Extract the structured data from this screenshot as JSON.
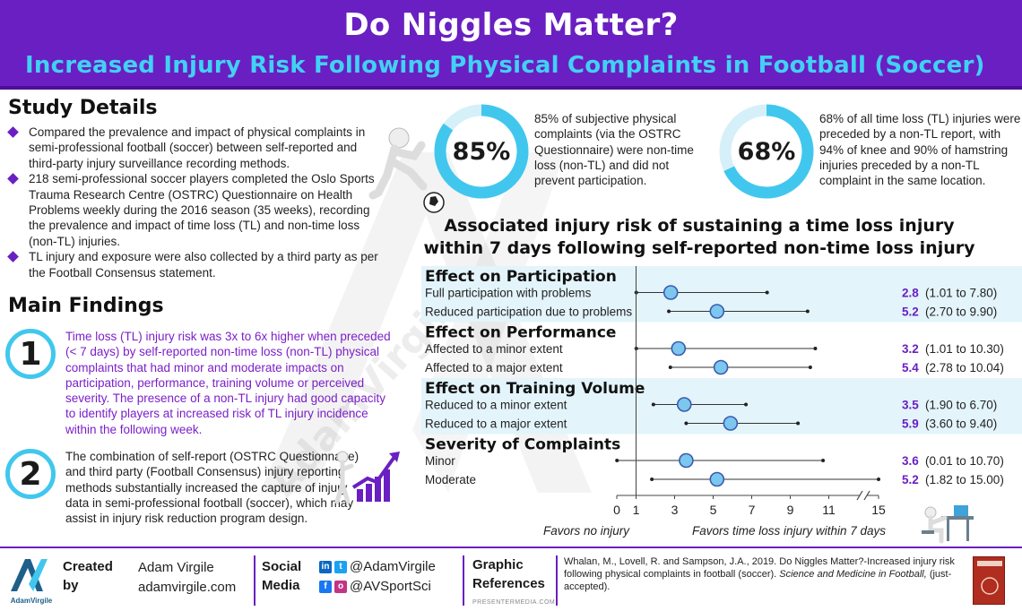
{
  "header": {
    "title": "Do Niggles Matter?",
    "subtitle": "Increased Injury Risk Following Physical Complaints in Football (Soccer)"
  },
  "watermark": "AdamVirgile",
  "study_details": {
    "heading": "Study Details",
    "items": [
      "Compared the prevalence and impact of physical complaints in semi-professional football (soccer) between self-reported and third-party injury surveillance recording methods.",
      "218 semi-professional soccer players completed the Oslo Sports Trauma Research Centre (OSTRC) Questionnaire on Health Problems weekly during the 2016 season (35 weeks), recording the prevalence and impact of time loss (TL) and non-time loss (non-TL) injuries.",
      "TL injury and exposure were also collected by a third party as per the Football Consensus statement."
    ]
  },
  "main_findings": {
    "heading": "Main Findings",
    "items": [
      {
        "number": "1",
        "text": "Time loss (TL) injury risk was 3x to 6x higher when preceded (< 7 days) by self-reported non-time loss (non-TL) physical complaints that had minor and moderate impacts on participation, performance, training volume or perceived severity. The presence of a non-TL injury had good capacity to identify players at increased risk of TL injury incidence within the following week."
      },
      {
        "number": "2",
        "text": "The combination of self-report (OSTRC Questionnaire) and third party (Football Consensus) injury reporting methods substantially increased the capture of injury data in semi-professional football (soccer), which may assist in injury risk reduction program design."
      }
    ]
  },
  "stats": [
    {
      "value": "85%",
      "fraction": 0.85,
      "text": "85% of subjective physical complaints (via the OSTRC Questionnaire) were non-time loss (non-TL) and did not prevent participation."
    },
    {
      "value": "68%",
      "fraction": 0.68,
      "text": "68% of all time loss (TL) injuries were preceded by a non-TL report, with 94% of knee and 90% of hamstring injuries preceded by a non-TL complaint in the same location."
    }
  ],
  "colors": {
    "purple": "#6a1fc2",
    "cyan": "#41c7ee",
    "band": "#e3f4fb",
    "dot": "#7cc7ee",
    "value_purple": "#6a1fc2"
  },
  "chart_data": {
    "type": "forest",
    "title": "Associated injury risk of sustaining a time loss injury within 7 days following self-reported non-time loss injury",
    "x_ticks": [
      "0",
      "1",
      "3",
      "5",
      "7",
      "9",
      "11",
      "15"
    ],
    "x_tick_values": [
      0,
      1,
      3,
      5,
      7,
      9,
      11,
      15
    ],
    "axis_break_between": [
      11,
      15
    ],
    "reference_line": 1,
    "xlabel_left": "Favors no injury",
    "xlabel_right": "Favors time loss injury within 7 days",
    "groups": [
      {
        "name": "Effect on Participation",
        "shaded": true,
        "rows": [
          {
            "label": "Full participation with problems",
            "estimate": 2.8,
            "lower": 1.01,
            "upper": 7.8,
            "value_text": "2.8",
            "ci_text": "(1.01 to 7.80)"
          },
          {
            "label": "Reduced participation due to problems",
            "estimate": 5.2,
            "lower": 2.7,
            "upper": 9.9,
            "value_text": "5.2",
            "ci_text": "(2.70 to 9.90)"
          }
        ]
      },
      {
        "name": "Effect on Performance",
        "shaded": false,
        "rows": [
          {
            "label": "Affected to a minor extent",
            "estimate": 3.2,
            "lower": 1.01,
            "upper": 10.3,
            "value_text": "3.2",
            "ci_text": "(1.01 to 10.30)"
          },
          {
            "label": "Affected to a major extent",
            "estimate": 5.4,
            "lower": 2.78,
            "upper": 10.04,
            "value_text": "5.4",
            "ci_text": "(2.78 to 10.04)"
          }
        ]
      },
      {
        "name": "Effect on Training Volume",
        "shaded": true,
        "rows": [
          {
            "label": "Reduced to a minor extent",
            "estimate": 3.5,
            "lower": 1.9,
            "upper": 6.7,
            "value_text": "3.5",
            "ci_text": "(1.90 to 6.70)"
          },
          {
            "label": "Reduced to a major extent",
            "estimate": 5.9,
            "lower": 3.6,
            "upper": 9.4,
            "value_text": "5.9",
            "ci_text": "(3.60 to 9.40)"
          }
        ]
      },
      {
        "name": "Severity of Complaints",
        "shaded": false,
        "rows": [
          {
            "label": "Minor",
            "estimate": 3.6,
            "lower": 0.01,
            "upper": 10.7,
            "value_text": "3.6",
            "ci_text": "(0.01 to 10.70)"
          },
          {
            "label": "Moderate",
            "estimate": 5.2,
            "lower": 1.82,
            "upper": 15.0,
            "value_text": "5.2",
            "ci_text": "(1.82 to 15.00)"
          }
        ]
      }
    ]
  },
  "footer": {
    "logo_text": "AdamVirgile",
    "created_label": "Created by",
    "author": "Adam Virgile",
    "website": "adamvirgile.com",
    "social_label": "Social Media",
    "handle_1": "@AdamVirgile",
    "handle_2": "@AVSportSci",
    "graphic_label": "Graphic References",
    "graphic_source": "PRESENTERMEDIA.COM",
    "citation_plain": "Whalan, M., Lovell, R. and Sampson, J.A., 2019. Do Niggles Matter?-Increased injury risk following physical complaints in football (soccer).",
    "citation_journal": "Science and Medicine in Football,",
    "citation_tail": "(just-accepted)."
  }
}
